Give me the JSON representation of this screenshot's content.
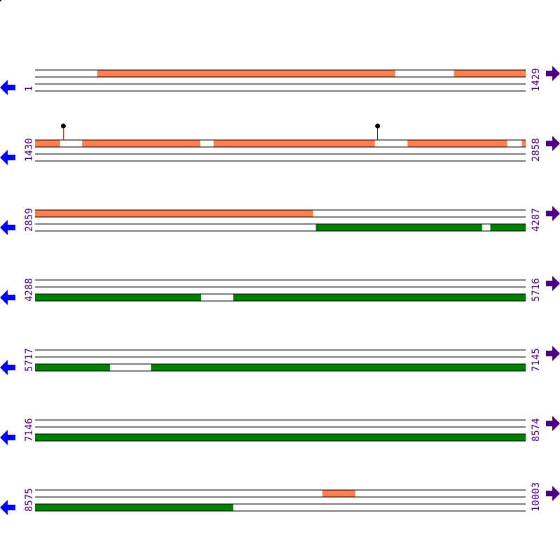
{
  "colors": {
    "orange": "#ff7f50",
    "green": "#008000",
    "line": "#000000",
    "left_arrow": "#0000ff",
    "right_arrow": "#4b0082",
    "label": "#4b0082",
    "marker_red": "#ff0000",
    "marker_black": "#000000"
  },
  "icons": {
    "left": "arrow-left-icon",
    "right": "arrow-right-icon"
  },
  "rows": [
    {
      "start": "1",
      "end": "1429",
      "s": 1,
      "e": 1429,
      "top": [
        [
          182,
          1049
        ],
        [
          1220,
          1429
        ]
      ],
      "bottom": [],
      "markers": []
    },
    {
      "start": "1430",
      "end": "2858",
      "s": 1430,
      "e": 2858,
      "top": [
        [
          1430,
          1503
        ],
        [
          1567,
          1911
        ],
        [
          1950,
          2419
        ],
        [
          2514,
          2804
        ],
        [
          2847,
          2858
        ]
      ],
      "bottom": [],
      "markers": [
        {
          "pos": 1512,
          "color": "red"
        },
        {
          "pos": 2427,
          "color": "black"
        }
      ]
    },
    {
      "start": "2859",
      "end": "4287",
      "s": 2859,
      "e": 4287,
      "top": [
        [
          2859,
          3668
        ]
      ],
      "bottom": [
        [
          3676,
          4160
        ],
        [
          4184,
          4287
        ]
      ],
      "markers": []
    },
    {
      "start": "4288",
      "end": "5716",
      "s": 4288,
      "e": 5716,
      "top": [],
      "bottom": [
        [
          4288,
          4771
        ],
        [
          4865,
          5716
        ]
      ],
      "markers": []
    },
    {
      "start": "5717",
      "end": "7145",
      "s": 5717,
      "e": 7145,
      "top": [],
      "bottom": [
        [
          5717,
          5935
        ],
        [
          6055,
          7145
        ]
      ],
      "markers": []
    },
    {
      "start": "7146",
      "end": "8574",
      "s": 7146,
      "e": 8574,
      "top": [],
      "bottom": [
        [
          7146,
          8574
        ]
      ],
      "markers": []
    },
    {
      "start": "8575",
      "end": "10003",
      "s": 8575,
      "e": 10003,
      "top": [
        [
          9411,
          9507
        ]
      ],
      "bottom": [
        [
          8575,
          9152
        ]
      ],
      "markers": []
    }
  ]
}
